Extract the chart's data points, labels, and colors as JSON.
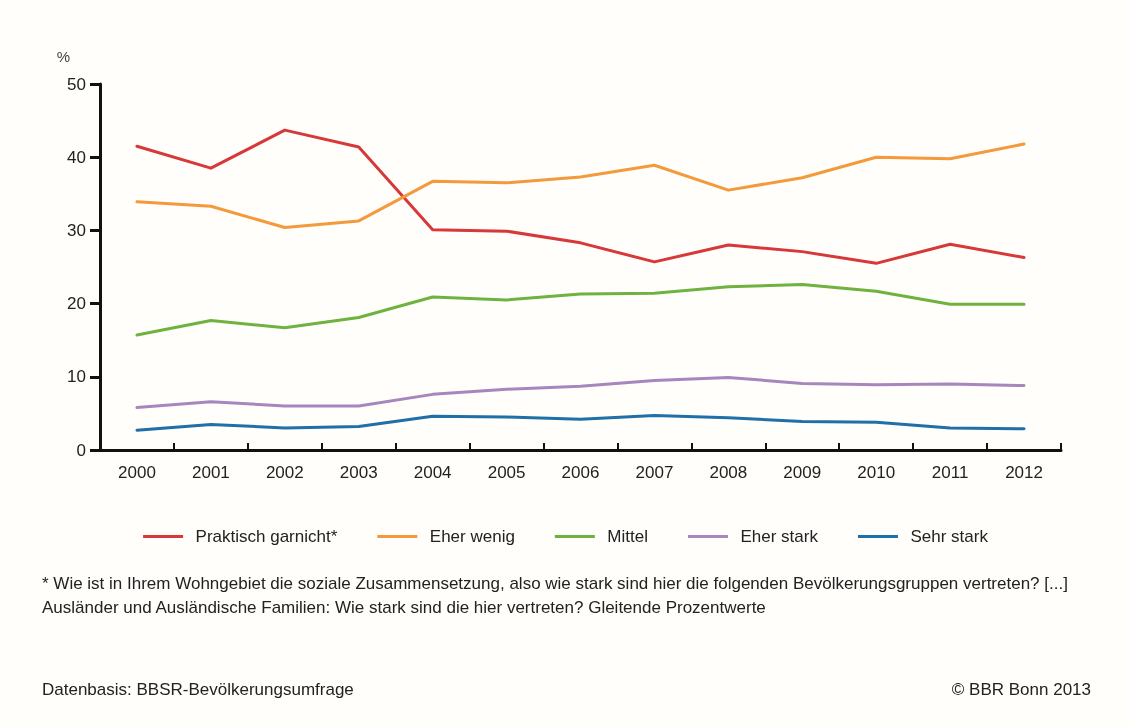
{
  "chart_data": {
    "type": "line",
    "ylabel": "%",
    "categories": [
      "2000",
      "2001",
      "2002",
      "2003",
      "2004",
      "2005",
      "2006",
      "2007",
      "2008",
      "2009",
      "2010",
      "2011",
      "2012"
    ],
    "series": [
      {
        "name": "Praktisch garnicht*",
        "color": "#d7383a",
        "values": [
          41.5,
          38.5,
          43.7,
          41.4,
          30.1,
          29.9,
          28.3,
          25.7,
          28.0,
          27.1,
          25.5,
          28.1,
          26.3
        ]
      },
      {
        "name": "Eher wenig",
        "color": "#f39a3c",
        "values": [
          33.9,
          33.3,
          30.4,
          31.3,
          36.7,
          36.5,
          37.3,
          38.9,
          35.5,
          37.2,
          40.0,
          39.8,
          41.8
        ]
      },
      {
        "name": "Mittel",
        "color": "#6fb23f",
        "values": [
          15.7,
          17.7,
          16.7,
          18.1,
          20.9,
          20.5,
          21.3,
          21.4,
          22.3,
          22.6,
          21.7,
          19.9,
          19.9
        ]
      },
      {
        "name": "Eher stark",
        "color": "#a786bd",
        "values": [
          5.8,
          6.6,
          6.0,
          6.0,
          7.6,
          8.3,
          8.7,
          9.5,
          9.9,
          9.1,
          8.9,
          9.0,
          8.8
        ]
      },
      {
        "name": "Sehr stark",
        "color": "#1f6fa8",
        "values": [
          2.7,
          3.5,
          3.0,
          3.2,
          4.6,
          4.5,
          4.2,
          4.7,
          4.4,
          3.9,
          3.8,
          3.0,
          2.9
        ]
      }
    ],
    "ylim": [
      0,
      50
    ],
    "yticks": [
      0,
      10,
      20,
      30,
      40,
      50
    ],
    "grid": false,
    "legend": "bottom",
    "marker": "none",
    "line_style": "solid",
    "annotations": [
      "* Wie ist in Ihrem Wohngebiet die soziale Zusammensetzung, also wie stark sind hier die folgenden Bevölkerungsgruppen vertreten? [...] Ausländer und Ausländische Familien: Wie stark sind die hier vertreten? Gleitende Prozentwerte",
      "Datenbasis: BBSR-Bevölkerungsumfrage",
      "© BBR Bonn 2013"
    ]
  }
}
